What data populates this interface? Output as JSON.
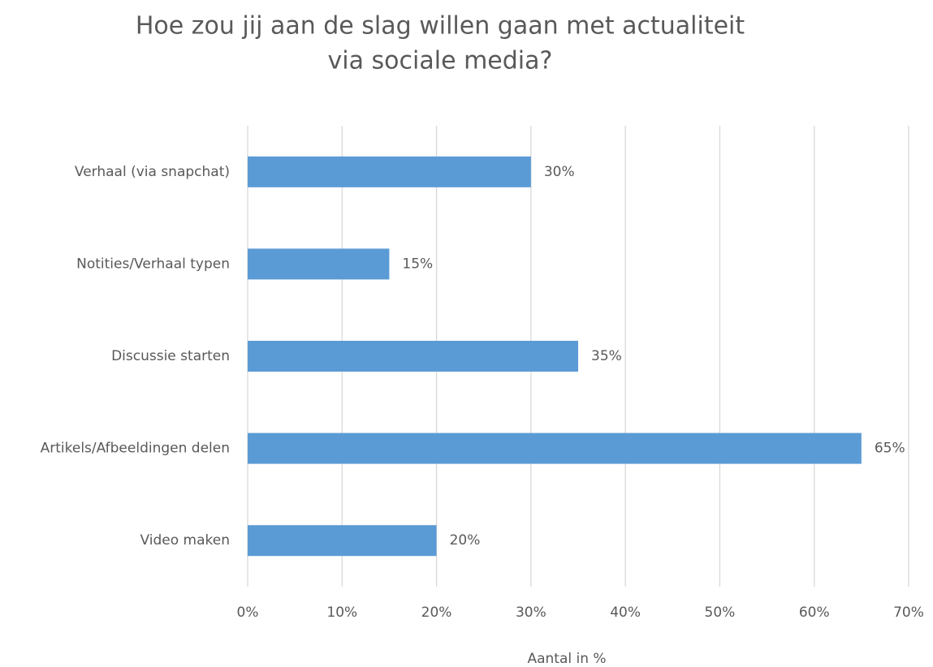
{
  "chart_data": {
    "type": "barh",
    "title": [
      "Hoe zou jij aan de slag willen gaan met actualiteit",
      "via sociale media?"
    ],
    "x_label": "Aantal in %",
    "categories": [
      "Verhaal (via snapchat)",
      "Notities/Verhaal typen",
      "Discussie starten",
      "Artikels/Afbeeldingen delen",
      "Video maken"
    ],
    "values": [
      30,
      15,
      35,
      65,
      20
    ],
    "value_labels": [
      "30%",
      "15%",
      "35%",
      "65%",
      "20%"
    ],
    "color": "#5b9bd5",
    "xlim": [
      0,
      70
    ],
    "xticks": [
      {
        "value": 0,
        "label": "0%"
      },
      {
        "value": 10,
        "label": "10%"
      },
      {
        "value": 20,
        "label": "20%"
      },
      {
        "value": 30,
        "label": "30%"
      },
      {
        "value": 40,
        "label": "40%"
      },
      {
        "value": 50,
        "label": "50%"
      },
      {
        "value": 60,
        "label": "60%"
      },
      {
        "value": 70,
        "label": "70%"
      }
    ],
    "grid": true
  }
}
